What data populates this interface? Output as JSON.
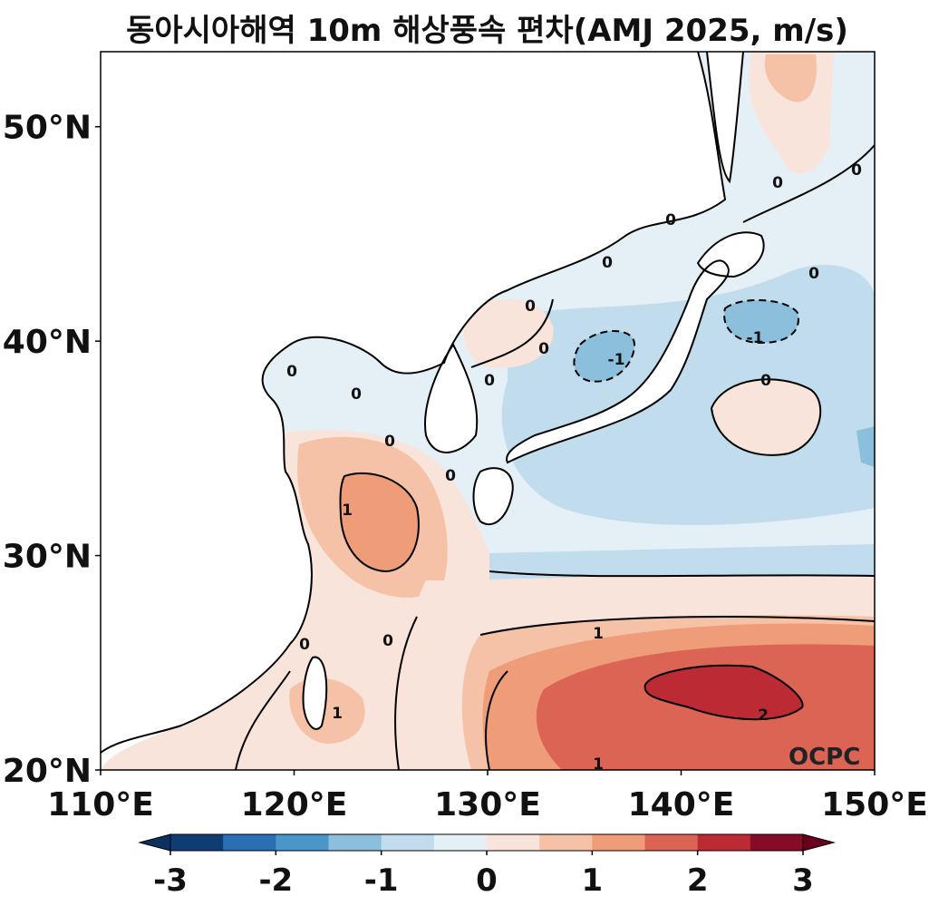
{
  "title": "동아시아해역 10m 해상풍속 편차(AMJ 2025, m/s)",
  "credit": "OCPC",
  "map": {
    "lon_range": [
      110,
      150
    ],
    "lat_range": [
      20,
      53.5
    ],
    "lon_ticks": [
      "110°E",
      "120°E",
      "130°E",
      "140°E",
      "150°E"
    ],
    "lat_ticks": [
      "20°N",
      "30°N",
      "40°N",
      "50°N"
    ]
  },
  "colorbar": {
    "levels": [
      -3,
      -2.5,
      -2,
      -1.5,
      -1,
      -0.5,
      0,
      0.5,
      1,
      1.5,
      2,
      2.5,
      3
    ],
    "colors": [
      "#0f3d73",
      "#2a6fb3",
      "#4a96c8",
      "#8bbfdc",
      "#c0dced",
      "#e4eff6",
      "#f9e4db",
      "#f6c2a7",
      "#ef9d79",
      "#db6454",
      "#bc2b33",
      "#850b26"
    ],
    "tick_labels": [
      "-3",
      "-2",
      "-1",
      "0",
      "1",
      "2",
      "3"
    ],
    "under_color": "#0b3160",
    "over_color": "#6a0020"
  },
  "contour_labels": [
    "0",
    "0",
    "0",
    "0",
    "0",
    "0",
    "0",
    "0",
    "0",
    "0",
    "0",
    "0",
    "0",
    "-1",
    "-1",
    "1",
    "1",
    "1",
    "2",
    "1",
    "0",
    "0"
  ],
  "colors": {
    "land": "#ffffff",
    "coast": "#000000",
    "contour": "#000000"
  }
}
